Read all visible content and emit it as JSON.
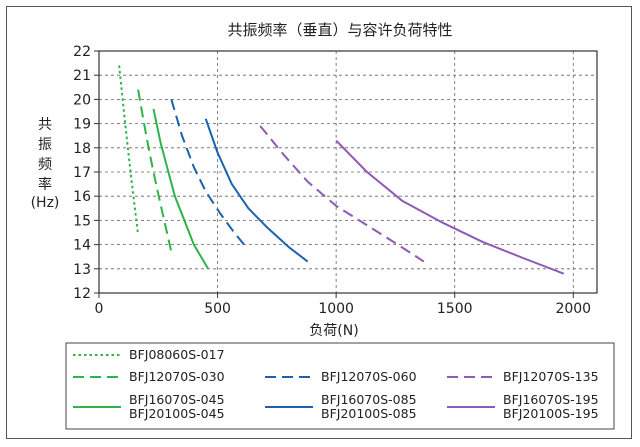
{
  "chart_data": {
    "type": "line",
    "title": "共振频率（垂直）与容许负荷特性",
    "xlabel": "负荷(N)",
    "ylabel_lines": [
      "共",
      "振",
      "频",
      "率",
      "(Hz)"
    ],
    "xlim": [
      0,
      2100
    ],
    "ylim": [
      12,
      22
    ],
    "xticks": [
      0,
      500,
      1000,
      1500,
      2000
    ],
    "yticks": [
      12,
      13,
      14,
      15,
      16,
      17,
      18,
      19,
      20,
      21,
      22
    ],
    "grid": true,
    "series": [
      {
        "name": "BFJ08060S-017",
        "color": "#2db34a",
        "dash": "dotted",
        "x": [
          85,
          105,
          125,
          145,
          165
        ],
        "y": [
          21.4,
          19.5,
          17.7,
          16.0,
          14.4
        ]
      },
      {
        "name": "BFJ12070S-030",
        "color": "#2db34a",
        "dash": "dashed",
        "x": [
          165,
          190,
          215,
          245,
          275,
          305
        ],
        "y": [
          20.4,
          19.0,
          17.7,
          16.3,
          15.0,
          13.7
        ]
      },
      {
        "name": "BFJ16070S-045\nBFJ20100S-045",
        "color": "#2db34a",
        "dash": "solid",
        "x": [
          230,
          260,
          290,
          320,
          360,
          400,
          460
        ],
        "y": [
          19.6,
          18.2,
          17.1,
          16.0,
          15.0,
          14.0,
          13.0
        ]
      },
      {
        "name": "BFJ12070S-060",
        "color": "#1a62b0",
        "dash": "dashed",
        "x": [
          305,
          350,
          400,
          450,
          510,
          570,
          620
        ],
        "y": [
          20.0,
          18.5,
          17.2,
          16.2,
          15.3,
          14.5,
          13.9
        ]
      },
      {
        "name": "BFJ16070S-085\nBFJ20100S-085",
        "color": "#1a62b0",
        "dash": "solid",
        "x": [
          450,
          500,
          560,
          630,
          710,
          800,
          880
        ],
        "y": [
          19.2,
          17.8,
          16.5,
          15.5,
          14.7,
          13.9,
          13.3
        ]
      },
      {
        "name": "BFJ12070S-135",
        "color": "#8e5ab5",
        "dash": "dashed",
        "x": [
          680,
          780,
          880,
          1000,
          1130,
          1260,
          1370
        ],
        "y": [
          18.9,
          17.7,
          16.6,
          15.6,
          14.8,
          14.0,
          13.3
        ]
      },
      {
        "name": "BFJ16070S-195\nBFJ20100S-195",
        "color": "#8e5ab5",
        "dash": "solid",
        "x": [
          1000,
          1130,
          1280,
          1450,
          1620,
          1800,
          1960
        ],
        "y": [
          18.3,
          17.0,
          15.8,
          14.9,
          14.1,
          13.4,
          12.8
        ]
      }
    ],
    "legend_placement": "bottom",
    "legend_order": [
      [
        0,
        null,
        null
      ],
      [
        1,
        3,
        5
      ],
      [
        2,
        4,
        6
      ]
    ]
  }
}
